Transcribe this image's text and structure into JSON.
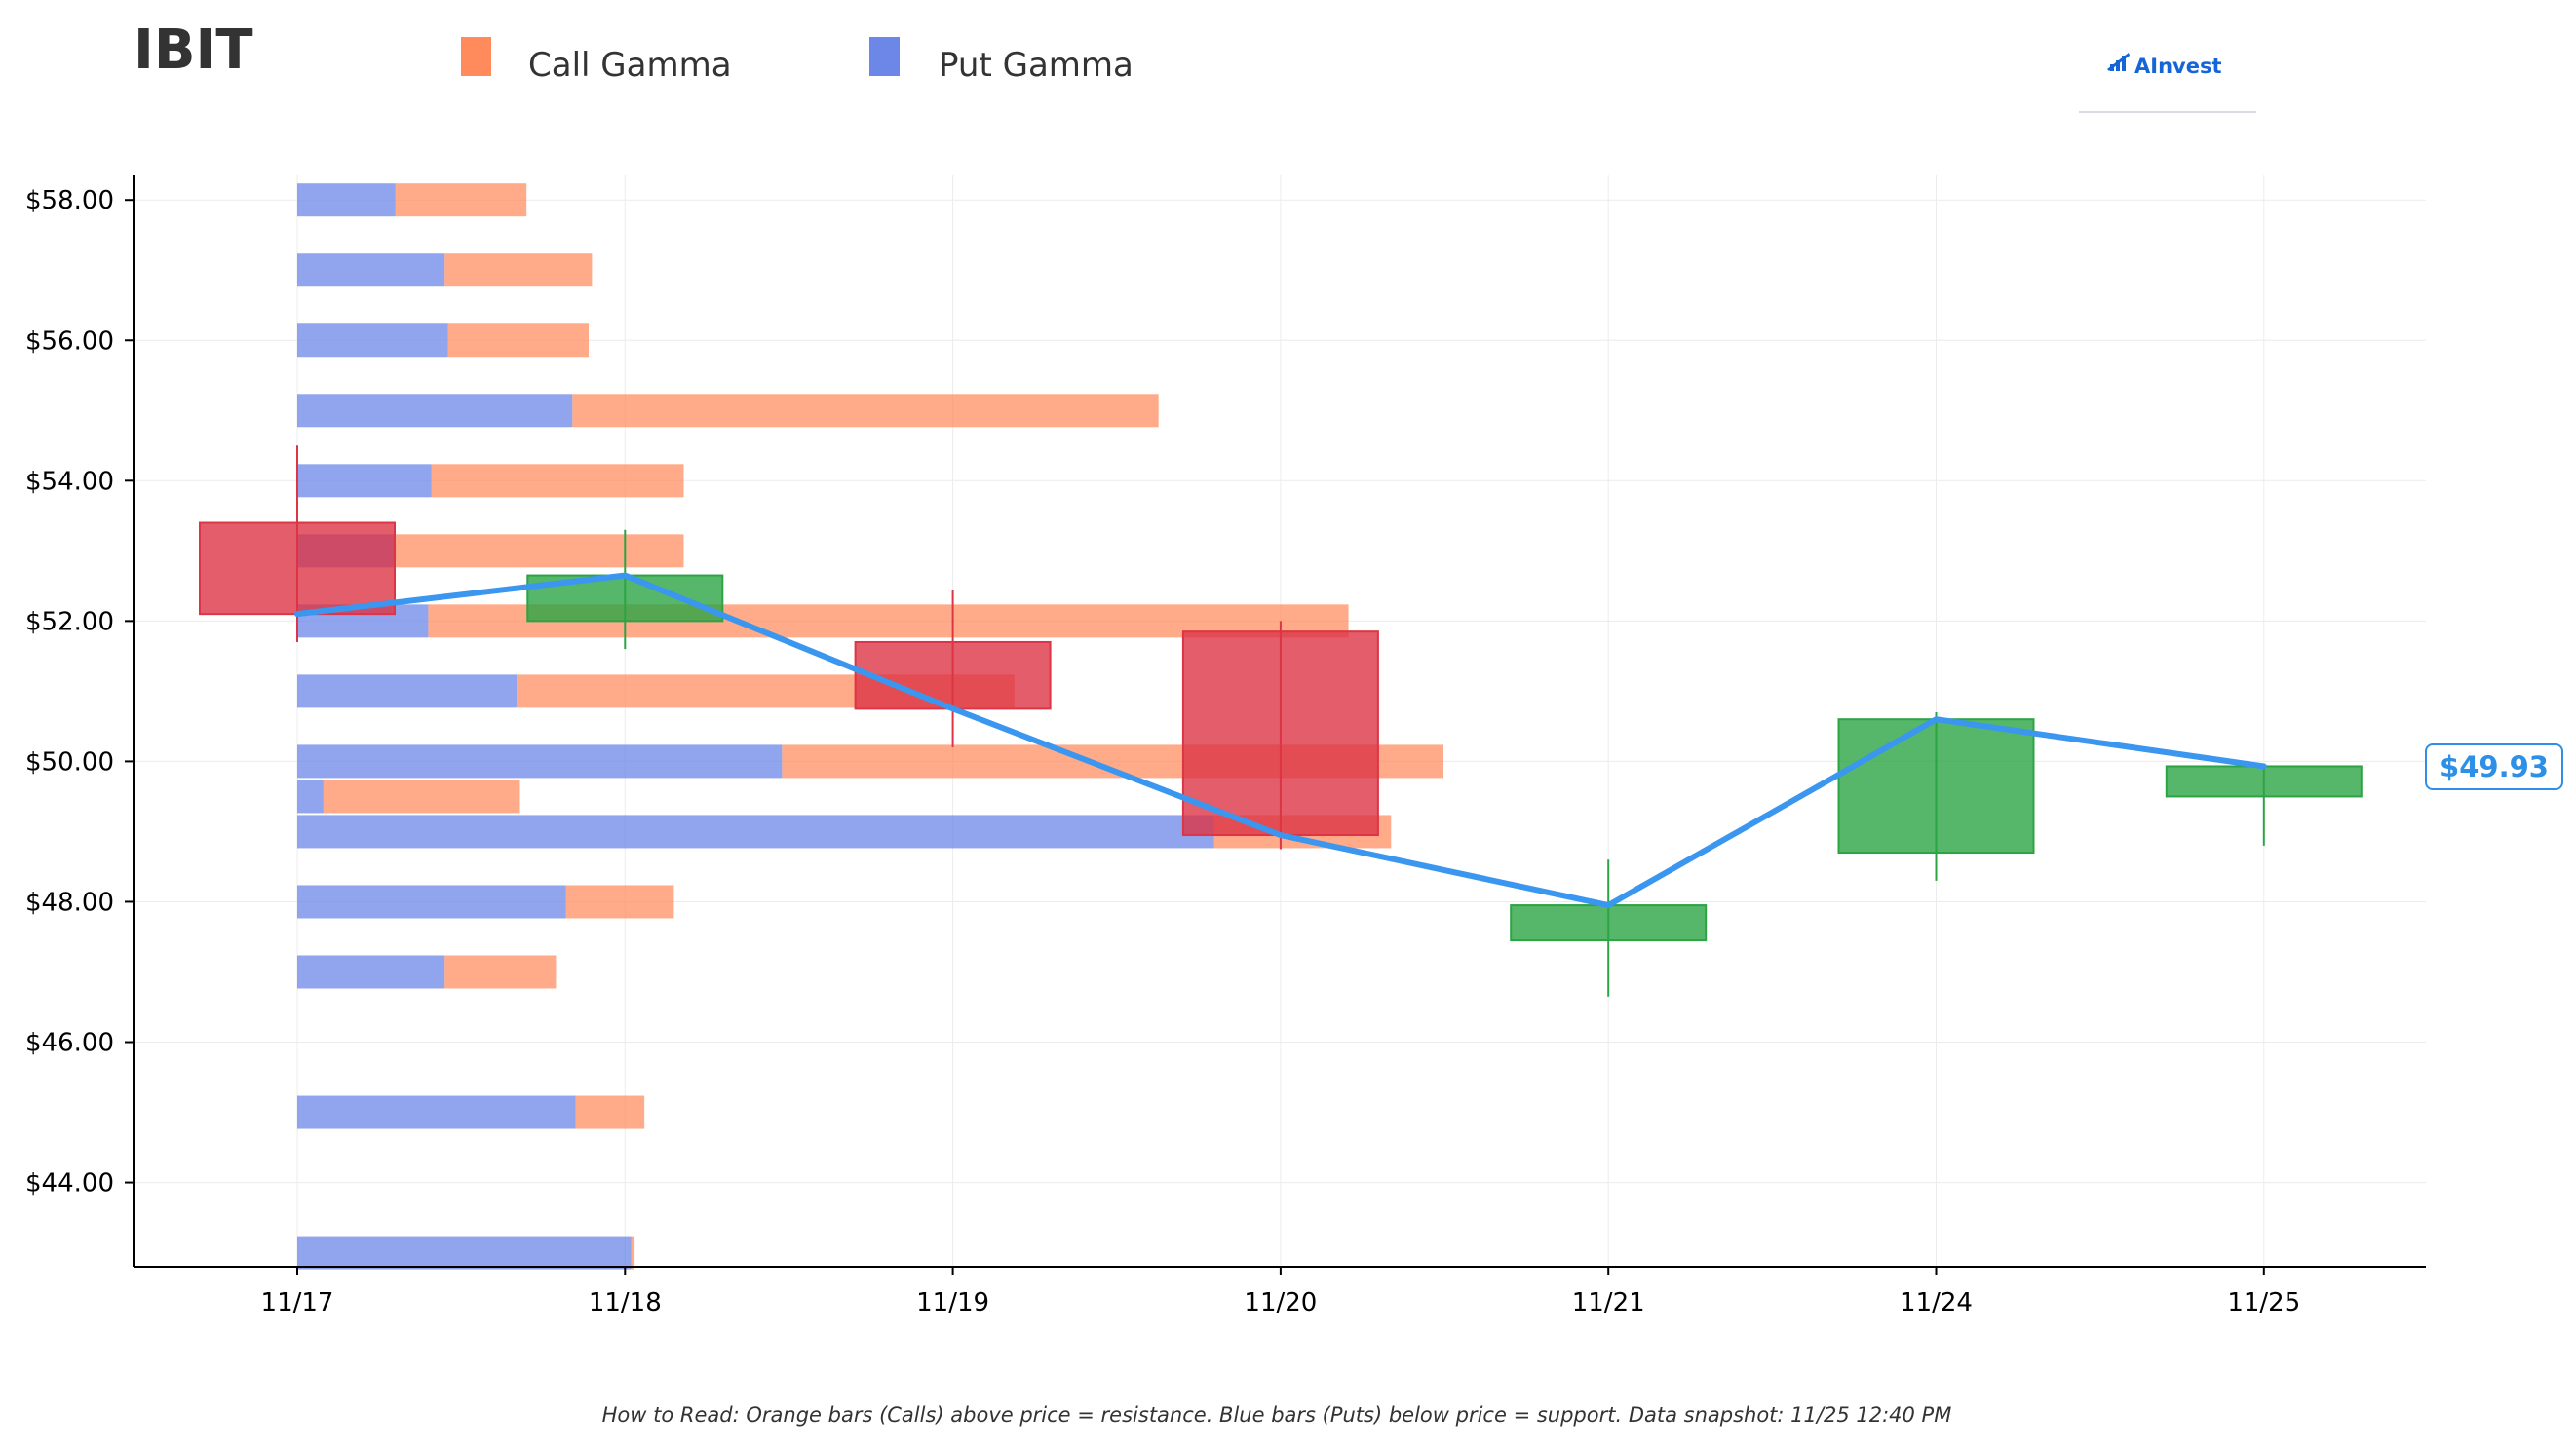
{
  "title": "IBIT",
  "legend": {
    "call_label": "Call Gamma",
    "put_label": "Put Gamma",
    "call_color": "#ff8a5c",
    "put_color": "#6c87e8"
  },
  "logo": {
    "text": "AInvest"
  },
  "footnote": "How to Read: Orange bars (Calls) above price = resistance. Blue bars (Puts) below price = support. Data snapshot: 11/25 12:40 PM",
  "current_price_label": "$49.93",
  "colors": {
    "call": "#ff8a5c",
    "put": "#6c87e8",
    "up_candle": "#2ca444",
    "down_candle": "#dc3545",
    "price_line": "#3a96ef",
    "price_label": "#2d8fe6"
  },
  "chart_data": {
    "type": "bar",
    "x_labels": [
      "11/17",
      "11/18",
      "11/19",
      "11/20",
      "11/21",
      "11/24",
      "11/25"
    ],
    "y_ticks": [
      "$44.00",
      "$46.00",
      "$48.00",
      "$50.00",
      "$52.00",
      "$54.00",
      "$56.00",
      "$58.00"
    ],
    "y_tick_values": [
      44,
      46,
      48,
      50,
      52,
      54,
      56,
      58
    ],
    "ylim": [
      42.8,
      58.35
    ],
    "grid": true,
    "legend_position": "top-left",
    "gamma_strikes": [
      {
        "strike": 58,
        "put": 0.3,
        "call": 0.4
      },
      {
        "strike": 57,
        "put": 0.45,
        "call": 0.45
      },
      {
        "strike": 56,
        "put": 0.46,
        "call": 0.43
      },
      {
        "strike": 55,
        "put": 0.84,
        "call": 1.79
      },
      {
        "strike": 54,
        "put": 0.41,
        "call": 0.77
      },
      {
        "strike": 53,
        "put": 0.3,
        "call": 0.88
      },
      {
        "strike": 52,
        "put": 0.4,
        "call": 2.81
      },
      {
        "strike": 51,
        "put": 0.67,
        "call": 1.52
      },
      {
        "strike": 50,
        "put": 1.48,
        "call": 2.02
      },
      {
        "strike": 49,
        "put": 2.8,
        "call": 0.54
      },
      {
        "strike": 48,
        "put": 0.82,
        "call": 0.33
      },
      {
        "strike": 47,
        "put": 0.45,
        "call": 0.34
      },
      {
        "strike": 45,
        "put": 0.85,
        "call": 0.21
      },
      {
        "strike": 43,
        "put": 1.02,
        "call": 0.01
      }
    ],
    "extra_call_bar": {
      "strike": 49.5,
      "start": 0.08,
      "value": 0.6
    },
    "candles": [
      {
        "date": "11/17",
        "open": 53.4,
        "high": 54.5,
        "low": 51.7,
        "close": 52.1
      },
      {
        "date": "11/18",
        "open": 52.0,
        "high": 53.3,
        "low": 51.6,
        "close": 52.65
      },
      {
        "date": "11/19",
        "open": 51.7,
        "high": 52.45,
        "low": 50.2,
        "close": 50.75
      },
      {
        "date": "11/20",
        "open": 51.85,
        "high": 52.0,
        "low": 48.75,
        "close": 48.95
      },
      {
        "date": "11/21",
        "open": 47.45,
        "high": 48.6,
        "low": 46.65,
        "close": 47.95
      },
      {
        "date": "11/24",
        "open": 48.7,
        "high": 50.7,
        "low": 48.3,
        "close": 50.6
      },
      {
        "date": "11/25",
        "open": 49.5,
        "high": 49.95,
        "low": 48.8,
        "close": 49.93
      }
    ],
    "price_line": [
      52.1,
      52.65,
      50.75,
      48.95,
      47.95,
      50.6,
      49.93
    ]
  }
}
